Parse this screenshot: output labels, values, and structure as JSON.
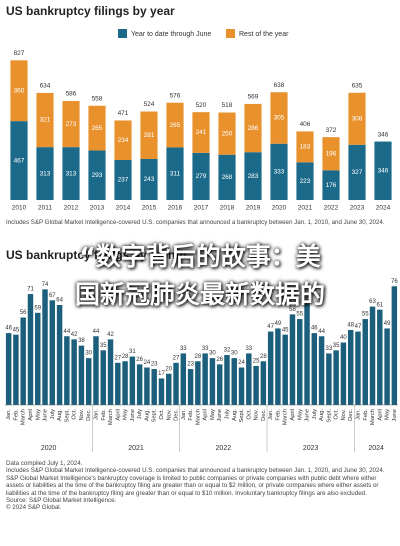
{
  "chart_data": [
    {
      "type": "stacked_bar",
      "title": "US bankruptcy filings by year",
      "categories": [
        "2010",
        "2011",
        "2012",
        "2013",
        "2014",
        "2015",
        "2016",
        "2017",
        "2018",
        "2019",
        "2020",
        "2021",
        "2022",
        "2023",
        "2024"
      ],
      "series": [
        {
          "name": "Year to date through June",
          "color": "#1b6a8a",
          "values": [
            467,
            313,
            313,
            293,
            237,
            243,
            311,
            279,
            268,
            283,
            333,
            223,
            176,
            327,
            346
          ]
        },
        {
          "name": "Rest of the year",
          "color": "#e8912d",
          "values": [
            360,
            321,
            273,
            265,
            234,
            281,
            265,
            241,
            250,
            286,
            305,
            183,
            196,
            308,
            null
          ]
        }
      ],
      "totals": [
        827,
        634,
        586,
        558,
        471,
        524,
        576,
        520,
        518,
        569,
        638,
        406,
        372,
        635,
        346
      ],
      "ylim": [
        0,
        900
      ],
      "note": "Includes S&P Global Market Intelligence-covered U.S. companies that announced a bankruptcy between Jan. 1, 2010, and June 30, 2024."
    },
    {
      "type": "bar",
      "title": "US bankruptcy filings by month",
      "color": "#1b5f7c",
      "categories": [
        "Jan.",
        "Feb.",
        "March",
        "April",
        "May",
        "June",
        "July",
        "Aug.",
        "Sept.",
        "Oct.",
        "Nov.",
        "Dec.",
        "Jan.",
        "Feb.",
        "March",
        "April",
        "May",
        "June",
        "July",
        "Aug.",
        "Sept.",
        "Oct.",
        "Nov.",
        "Dec.",
        "Jan.",
        "Feb.",
        "March",
        "April",
        "May",
        "June",
        "July",
        "Aug.",
        "Sept.",
        "Oct.",
        "Nov.",
        "Dec.",
        "Jan.",
        "Feb.",
        "March",
        "April",
        "May",
        "June",
        "July",
        "Aug.",
        "Sept.",
        "Oct.",
        "Nov.",
        "Dec.",
        "Jan.",
        "Feb.",
        "March",
        "April",
        "May",
        "June"
      ],
      "groups": [
        "2020",
        "2021",
        "2022",
        "2023",
        "2024"
      ],
      "values": [
        46,
        45,
        56,
        71,
        59,
        74,
        67,
        64,
        44,
        42,
        38,
        30,
        44,
        35,
        42,
        27,
        28,
        31,
        26,
        24,
        23,
        17,
        20,
        27,
        33,
        23,
        28,
        33,
        30,
        26,
        32,
        30,
        24,
        33,
        25,
        28,
        47,
        49,
        45,
        58,
        55,
        65,
        46,
        44,
        33,
        35,
        40,
        48,
        47,
        55,
        63,
        61,
        49,
        76
      ],
      "ylim": [
        0,
        80
      ],
      "notes": [
        "Data compiled July 1, 2024.",
        "Includes S&P Global Market Intelligence-covered U.S. companies that announced a bankruptcy between Jan. 1, 2020, and June 30, 2024.",
        "S&P Global Market Intelligence's bankruptcy coverage is limited to public companies or private companies with public debt where either assets or liabilities at the time of the bankruptcy filing are greater than or equal to $2 million, or private companies where either assets or liabilities at the time of the bankruptcy filing are greater than or equal to $10 million. Involuntary bankruptcy filings are also excluded.",
        "Source: S&P Global Market Intelligence.",
        "© 2024 S&P Global."
      ]
    }
  ],
  "overlay": {
    "lines": [
      "“数字背后的故事：美",
      "国新冠肺炎最新数据的"
    ]
  }
}
